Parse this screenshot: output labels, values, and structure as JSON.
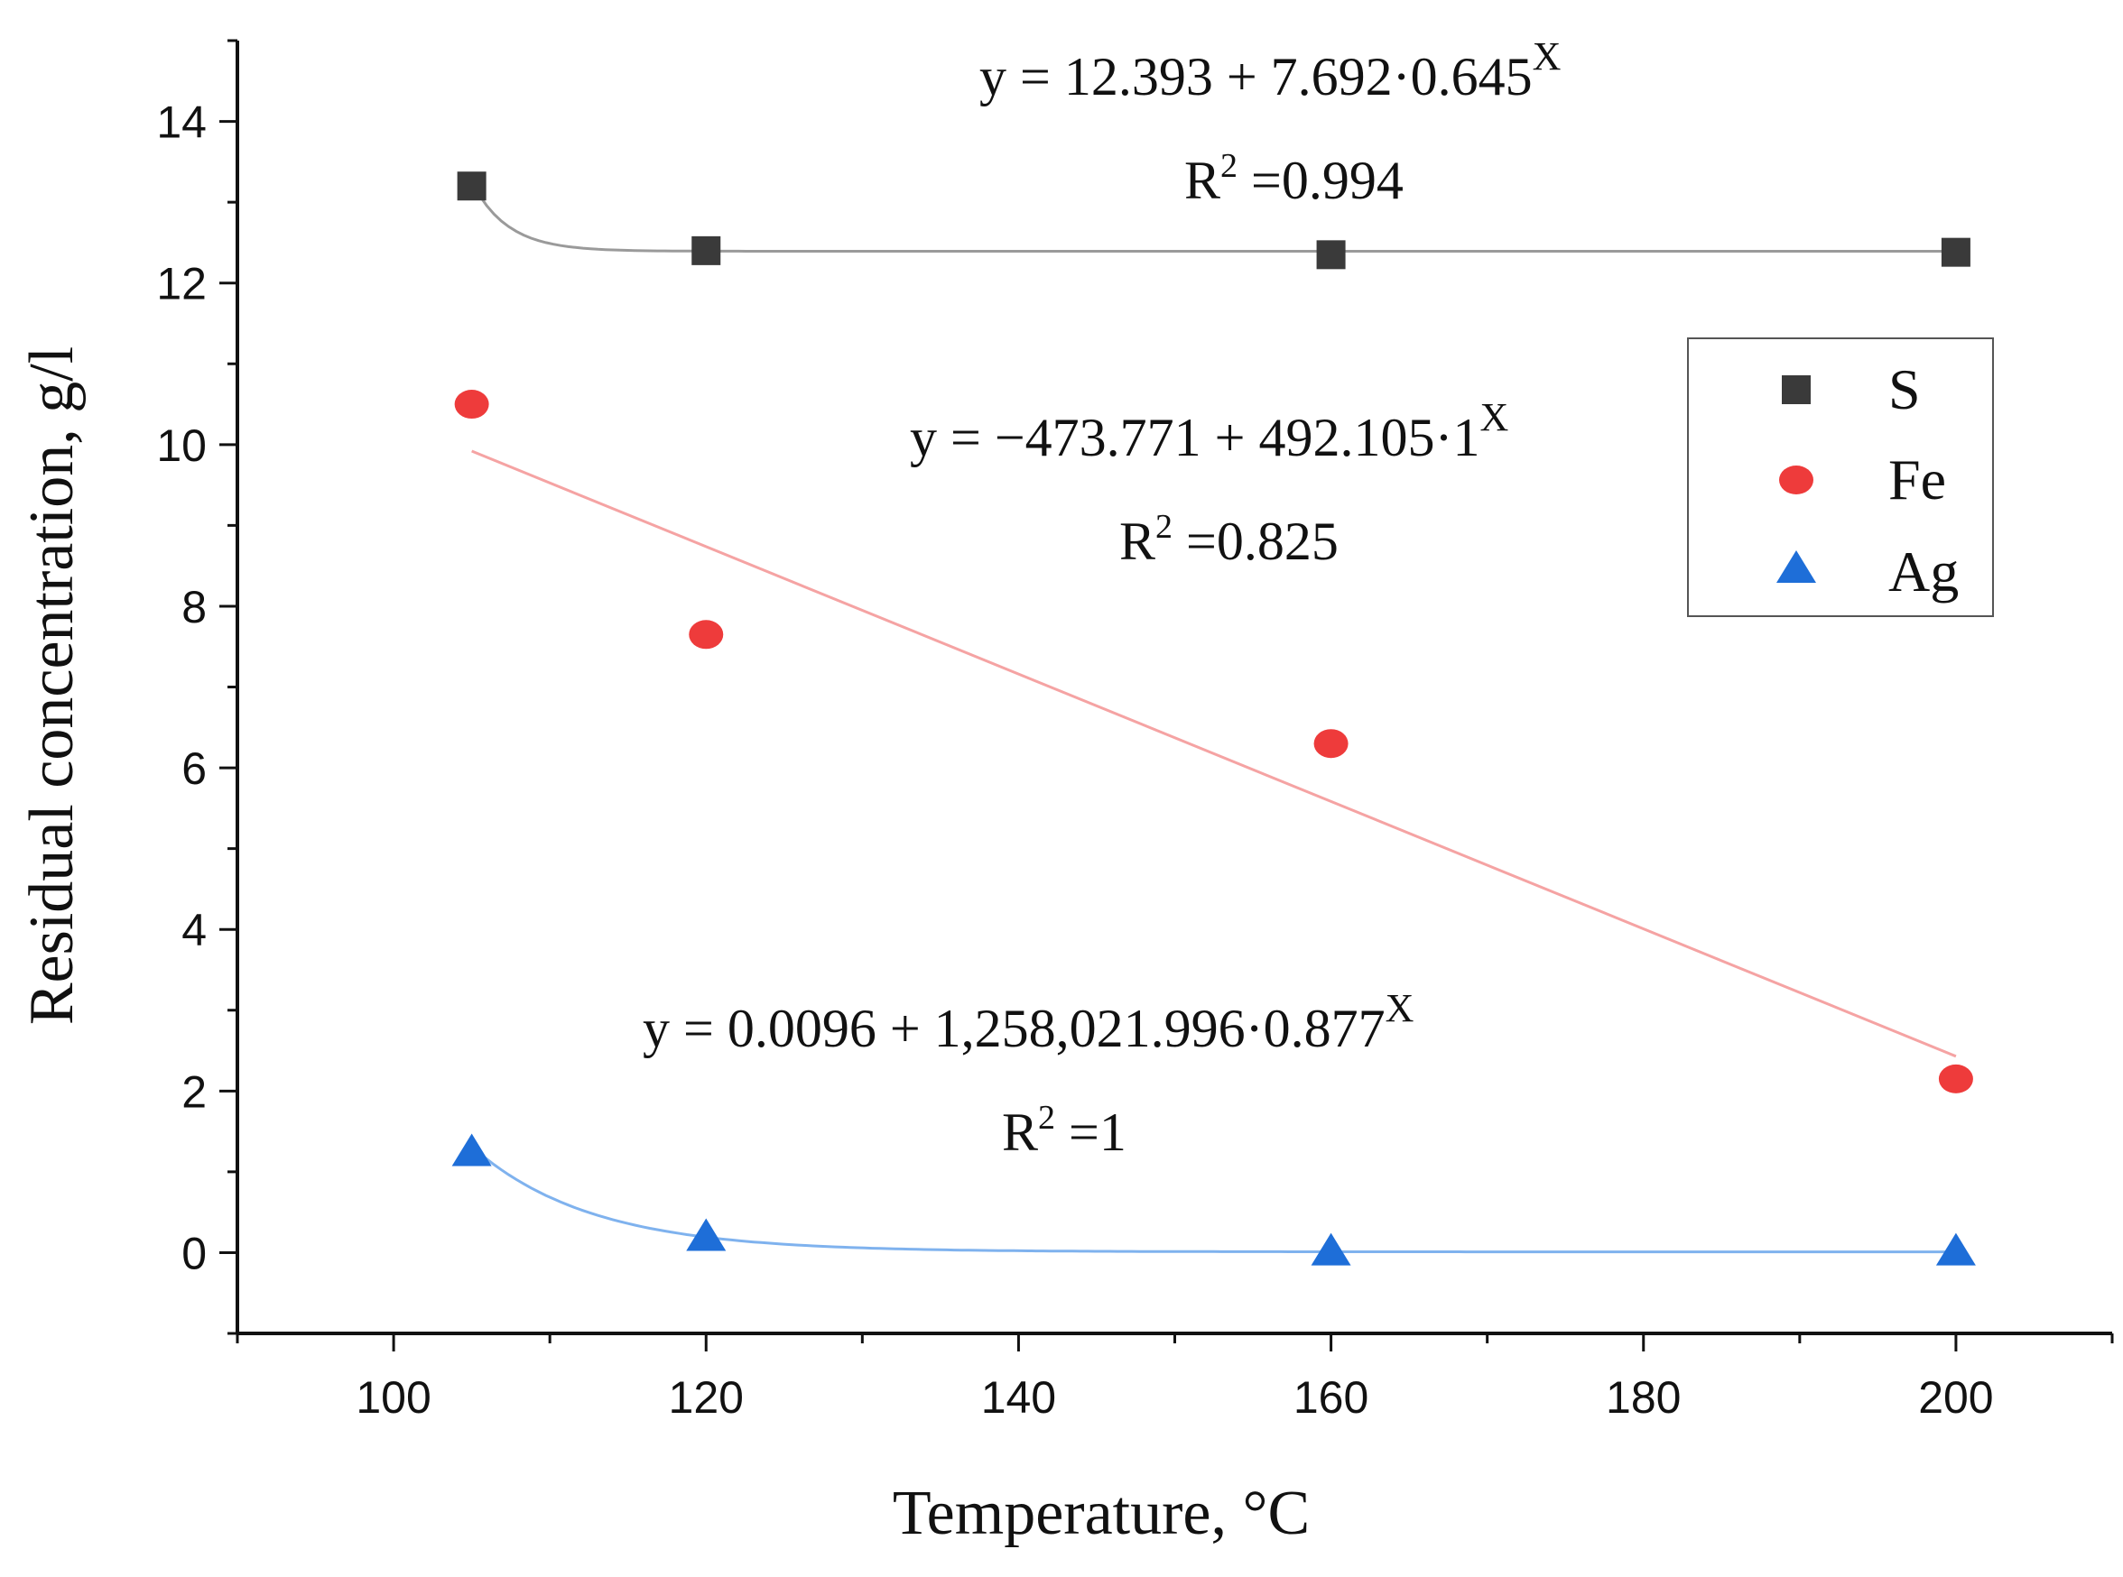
{
  "chart_data": {
    "type": "scatter",
    "title": "",
    "xlabel": "Temperature, °C",
    "ylabel": "Residual concentration, g/l",
    "xlim": [
      90,
      210
    ],
    "ylim": [
      -1,
      15
    ],
    "xticks": [
      "100",
      "120",
      "140",
      "160",
      "180",
      "200"
    ],
    "yticks": [
      "0",
      "2",
      "4",
      "6",
      "8",
      "10",
      "12",
      "14"
    ],
    "grid": false,
    "legend_position": "top-right",
    "series": [
      {
        "name": "S",
        "marker": "square",
        "color": "#3a3a3a",
        "line_color": "#9a9a9a",
        "x": [
          105,
          120,
          160,
          200
        ],
        "y": [
          13.2,
          12.4,
          12.35,
          12.38
        ],
        "fit": {
          "type": "exp",
          "a": 12.393,
          "b": 7.692,
          "c": 0.645,
          "x_offset": 100,
          "equation_main": "y = 12.393 + 7.692·0.645",
          "equation_exponent": "X",
          "r2_prefix": "R",
          "r2_sup": "2",
          "r2_value": " =0.994"
        }
      },
      {
        "name": "Fe",
        "marker": "circle",
        "color": "#ee3b3b",
        "line_color": "#f5a3a3",
        "x": [
          105,
          120,
          160,
          200
        ],
        "y": [
          10.5,
          7.65,
          6.3,
          2.15
        ],
        "fit": {
          "type": "linear",
          "x0": 105,
          "y0": 9.92,
          "x1": 200,
          "y1": 2.43,
          "equation_main": "y = −473.771 + 492.105·1",
          "equation_exponent": "X",
          "r2_prefix": "R",
          "r2_sup": "2",
          "r2_value": " =0.825"
        }
      },
      {
        "name": "Ag",
        "marker": "triangle",
        "color": "#1e6ed8",
        "line_color": "#7fb2ee",
        "x": [
          105,
          120,
          160,
          200
        ],
        "y": [
          1.25,
          0.2,
          0.02,
          0.02
        ],
        "fit": {
          "type": "exp",
          "a": 0.0096,
          "b": 1258021.996,
          "c": 0.877,
          "x_offset": 0,
          "equation_main": "y = 0.0096 + 1,258,021.996·0.877",
          "equation_exponent": "X",
          "r2_prefix": "R",
          "r2_sup": "2",
          "r2_value": " =1"
        }
      }
    ]
  }
}
